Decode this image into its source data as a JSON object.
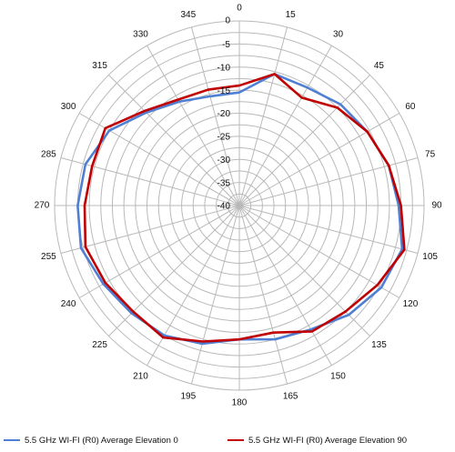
{
  "chart_data": {
    "type": "radar",
    "title": "",
    "angle_labels": [
      "0",
      "15",
      "30",
      "45",
      "60",
      "75",
      "90",
      "105",
      "120",
      "135",
      "150",
      "165",
      "180",
      "195",
      "210",
      "225",
      "240",
      "255",
      "270",
      "285",
      "300",
      "315",
      "330",
      "345"
    ],
    "radial_ticks": [
      "0",
      "-5",
      "-10",
      "-15",
      "-20",
      "-25",
      "-30",
      "-35",
      "-40"
    ],
    "radial_range": [
      -40,
      0
    ],
    "grid": true,
    "legend_position": "bottom",
    "series": [
      {
        "name": "5.5 GHz WI-FI (R0) Average Elevation 0",
        "color": "#4f7fd3",
        "values": [
          -15.5,
          -10.5,
          -10.5,
          -9.0,
          -8.0,
          -6.5,
          -5.5,
          -3.5,
          -4.5,
          -6.5,
          -9.0,
          -10.0,
          -11.0,
          -9.0,
          -7.5,
          -7.0,
          -6.0,
          -4.5,
          -5.0,
          -5.5,
          -7.5,
          -11.5,
          -14.0,
          -15.5
        ]
      },
      {
        "name": "5.5 GHz WI-FI (R0) Average Elevation 90",
        "color": "#c00000",
        "values": [
          -14.0,
          -10.5,
          -13.0,
          -10.0,
          -8.0,
          -6.5,
          -5.0,
          -3.0,
          -5.5,
          -7.5,
          -8.5,
          -11.5,
          -11.0,
          -9.5,
          -7.0,
          -7.5,
          -6.5,
          -5.5,
          -6.5,
          -7.0,
          -6.5,
          -11.0,
          -13.5,
          -14.0
        ]
      }
    ]
  },
  "legend": {
    "item1": "5.5 GHz WI-FI (R0) Average Elevation 0",
    "item2": "5.5 GHz WI-FI (R0) Average Elevation 90"
  }
}
